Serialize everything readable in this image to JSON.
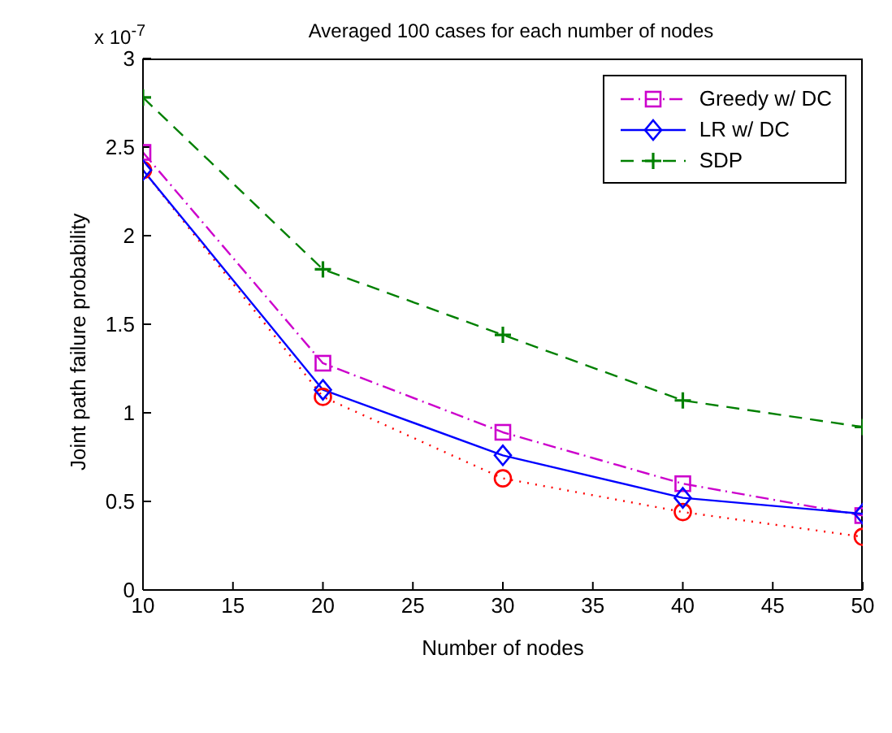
{
  "chart_data": {
    "type": "line",
    "title": "Averaged 100 cases for each number of nodes",
    "xlabel": "Number of nodes",
    "ylabel": "Joint path failure probability",
    "annotations": [
      "x 10$^{-7}$"
    ],
    "x": [
      10,
      20,
      30,
      40,
      50
    ],
    "series": [
      {
        "color": "#ff0000",
        "values": [
          2.37,
          1.09,
          0.63,
          0.44,
          0.3
        ],
        "marker": "circle",
        "line_style": "dotted"
      },
      {
        "name": "Greedy w/ DC",
        "color": "#cc00cc",
        "values": [
          2.47,
          1.28,
          0.89,
          0.6,
          0.42
        ],
        "marker": "square",
        "line_style": "dashdot"
      },
      {
        "name": "LR w/ DC",
        "color": "#0000ff",
        "values": [
          2.37,
          1.13,
          0.76,
          0.52,
          0.43
        ],
        "marker": "diamond",
        "line_style": "solid"
      },
      {
        "name": "SDP",
        "color": "#008000",
        "values": [
          2.78,
          1.81,
          1.44,
          1.07,
          0.92
        ],
        "marker": "cross",
        "line_style": "dashed"
      }
    ],
    "xlim": [
      10,
      50
    ],
    "xticks": [
      10,
      15,
      20,
      25,
      30,
      35,
      40,
      45,
      50
    ],
    "ylim": [
      0,
      3
    ],
    "yticks": [
      0,
      0.5,
      1,
      1.5,
      2,
      2.5,
      3
    ],
    "legend": "top right"
  }
}
